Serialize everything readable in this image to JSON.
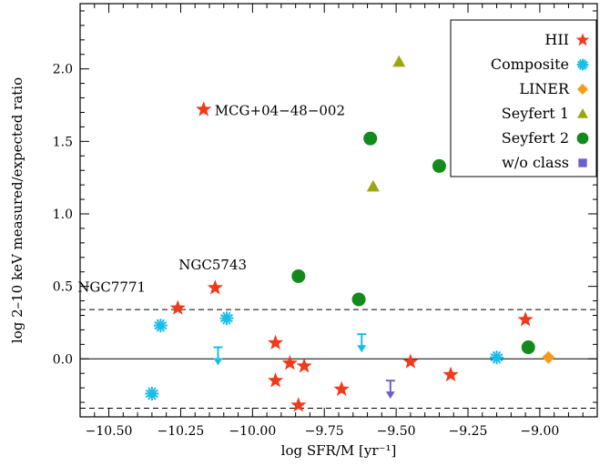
{
  "chart_data": {
    "type": "scatter",
    "xlabel": "log SFR/M [yr⁻¹]",
    "ylabel": "log 2–10 keV measured/expected ratio",
    "xlim": [
      -10.6,
      -8.8
    ],
    "ylim": [
      -0.4,
      2.45
    ],
    "xticks": [
      -10.5,
      -10.25,
      -10.0,
      -9.75,
      -9.5,
      -9.25,
      -9.0
    ],
    "xtick_labels": [
      "−10.50",
      "−10.25",
      "−10.00",
      "−9.75",
      "−9.50",
      "−9.25",
      "−9.00"
    ],
    "yticks": [
      0.0,
      0.5,
      1.0,
      1.5,
      2.0
    ],
    "ytick_labels": [
      "0.0",
      "0.5",
      "1.0",
      "1.5",
      "2.0"
    ],
    "grid": false,
    "legend_position": "top-right",
    "reference_lines": [
      {
        "y": 0.0,
        "style": "solid"
      },
      {
        "y": 0.34,
        "style": "dashed"
      },
      {
        "y": -0.34,
        "style": "dashed"
      }
    ],
    "series": [
      {
        "name": "HII",
        "marker": "star",
        "color": "#f03a1c",
        "points": [
          [
            -10.26,
            0.35
          ],
          [
            -10.13,
            0.49
          ],
          [
            -10.17,
            1.72
          ],
          [
            -9.92,
            0.11
          ],
          [
            -9.87,
            -0.03
          ],
          [
            -9.82,
            -0.05
          ],
          [
            -9.92,
            -0.15
          ],
          [
            -9.84,
            -0.32
          ],
          [
            -9.69,
            -0.21
          ],
          [
            -9.45,
            -0.02
          ],
          [
            -9.31,
            -0.11
          ],
          [
            -9.05,
            0.27
          ]
        ]
      },
      {
        "name": "Composite",
        "marker": "asterisk",
        "color": "#18bde8",
        "points": [
          [
            -10.32,
            0.23
          ],
          [
            -10.09,
            0.28
          ],
          [
            -10.35,
            -0.24
          ],
          [
            -9.15,
            0.01
          ]
        ]
      },
      {
        "name": "LINER",
        "marker": "diamond",
        "color": "#f79a1a",
        "points": [
          [
            -8.97,
            0.01
          ]
        ]
      },
      {
        "name": "Seyfert 1",
        "marker": "triangle",
        "color": "#9aa612",
        "points": [
          [
            -9.49,
            2.05
          ],
          [
            -9.58,
            1.19
          ]
        ]
      },
      {
        "name": "Seyfert 2",
        "marker": "circle",
        "color": "#138a1c",
        "points": [
          [
            -9.59,
            1.52
          ],
          [
            -9.35,
            1.33
          ],
          [
            -9.84,
            0.57
          ],
          [
            -9.63,
            0.41
          ],
          [
            -9.04,
            0.08
          ]
        ]
      },
      {
        "name": "w/o class",
        "marker": "square",
        "color": "#6a5fcf",
        "points": []
      }
    ],
    "upper_limits": [
      {
        "series": "Composite",
        "x": -10.12,
        "y": 0.08
      },
      {
        "series": "Composite",
        "x": -9.62,
        "y": 0.17
      },
      {
        "series": "w/o class",
        "x": -9.52,
        "y": -0.15
      }
    ],
    "annotations": [
      {
        "text": "MCG+04−48−002",
        "x": -10.17,
        "y": 1.72
      },
      {
        "text": "NGC5743",
        "x": -10.13,
        "y": 0.49
      },
      {
        "text": "NGC7771",
        "x": -10.26,
        "y": 0.35
      }
    ],
    "colors": {
      "hii": "#f03a1c",
      "composite": "#18bde8",
      "liner": "#f79a1a",
      "seyfert1": "#9aa612",
      "seyfert2": "#138a1c",
      "noclass": "#6a5fcf"
    }
  }
}
